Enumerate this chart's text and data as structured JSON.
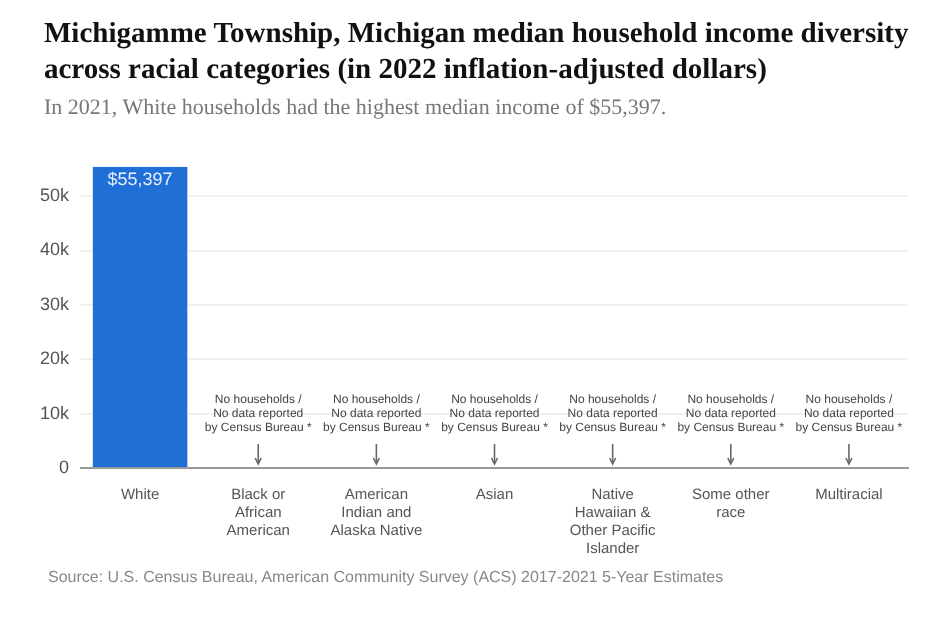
{
  "chart_data": {
    "type": "bar",
    "title": "Michigamme Township, Michigan median household income diversity across racial categories (in 2022 inflation-adjusted dollars)",
    "subtitle": "In 2021, White households had the highest median income of $55,397.",
    "categories": [
      "White",
      "Black or African American",
      "American Indian and Alaska Native",
      "Asian",
      "Native Hawaiian & Other Pacific Islander",
      "Some other race",
      "Multiracial"
    ],
    "values": [
      55397,
      null,
      null,
      null,
      null,
      null,
      null
    ],
    "value_labels": [
      "$55,397",
      null,
      null,
      null,
      null,
      null,
      null
    ],
    "color": "#1f6fd6",
    "ylim": [
      0,
      55397
    ],
    "yticks": [
      0,
      {
        "value": 10000,
        "label": "10k"
      },
      {
        "value": 20000,
        "label": "20k"
      },
      {
        "value": 30000,
        "label": "30k"
      },
      {
        "value": 40000,
        "label": "40k"
      },
      {
        "value": 50000,
        "label": "50k"
      }
    ],
    "grid": "y",
    "legend": false,
    "annotations": [
      "No households /\nNo data reported\nby Census Bureau *",
      "No households /\nNo data reported\nby Census Bureau *",
      "No households /\nNo data reported\nby Census Bureau *",
      "No households /\nNo data reported\nby Census Bureau *",
      "No households /\nNo data reported\nby Census Bureau *",
      "No households /\nNo data reported\nby Census Bureau *",
      "Source: U.S. Census Bureau, American Community Survey (ACS) 2017-2021 5-Year Estimates"
    ]
  }
}
